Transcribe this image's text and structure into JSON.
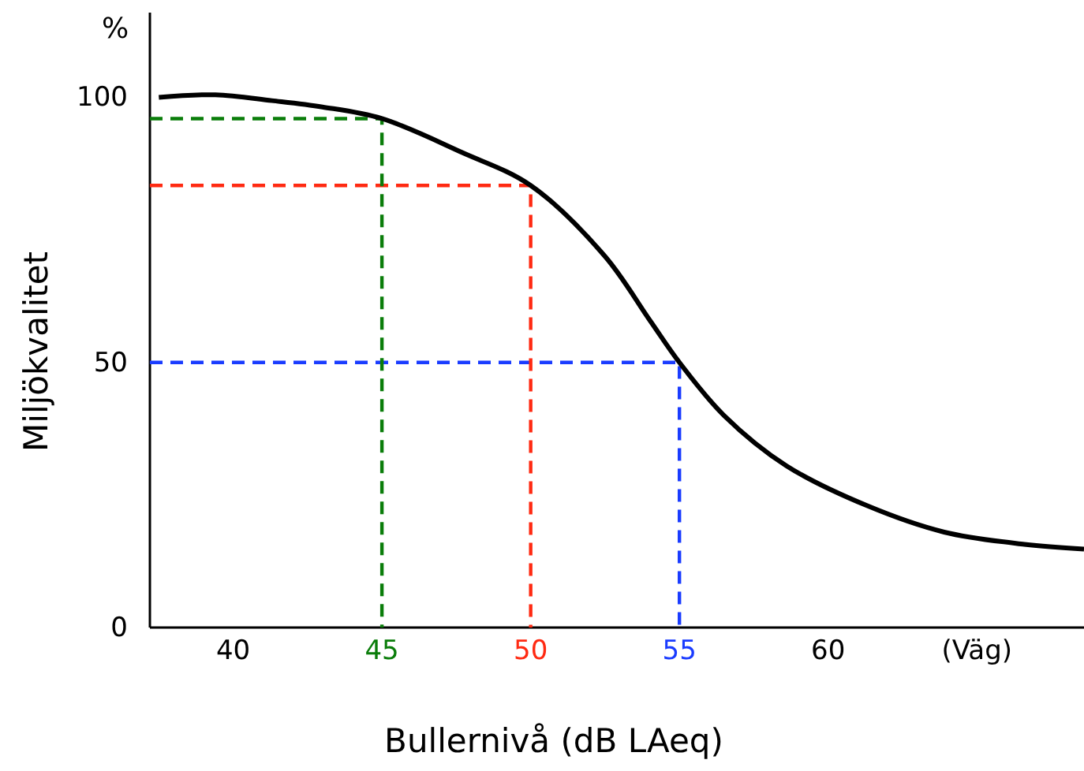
{
  "chart_data": {
    "type": "line",
    "xlabel": "Bullernivå (dB LAeq)",
    "ylabel": "Miljökvalitet",
    "annotations": [
      "%"
    ],
    "xlim": [
      37.2,
      68.6
    ],
    "ylim": [
      0,
      116
    ],
    "xticks": [
      40,
      45,
      50,
      55,
      60,
      {
        "value": 65,
        "label": "(Väg)"
      }
    ],
    "yticks": [
      0,
      50,
      100
    ],
    "series": [
      {
        "color": "#000000",
        "line_style": "solid",
        "x": [
          37.5,
          39.4,
          41.3,
          43,
          45,
          47.7,
          50,
          52.5,
          54,
          55,
          56.5,
          58.6,
          61.3,
          63.9,
          66.6,
          68.6
        ],
        "values": [
          100,
          100.5,
          99.4,
          98.2,
          96,
          89.6,
          83.4,
          70,
          58,
          50,
          40,
          30.5,
          23,
          18,
          15.7,
          14.8
        ]
      },
      {
        "color": "#0a7d0a",
        "line_style": "dashed",
        "x": [
          37.2,
          45,
          45
        ],
        "values": [
          96,
          96,
          0
        ]
      },
      {
        "color": "#ff2a12",
        "line_style": "dashed",
        "x": [
          37.2,
          50,
          50
        ],
        "values": [
          83.4,
          83.4,
          0
        ]
      },
      {
        "color": "#1a3cff",
        "line_style": "dashed",
        "x": [
          37.2,
          55,
          55
        ],
        "values": [
          50,
          50,
          0
        ]
      }
    ],
    "marker": "none"
  }
}
